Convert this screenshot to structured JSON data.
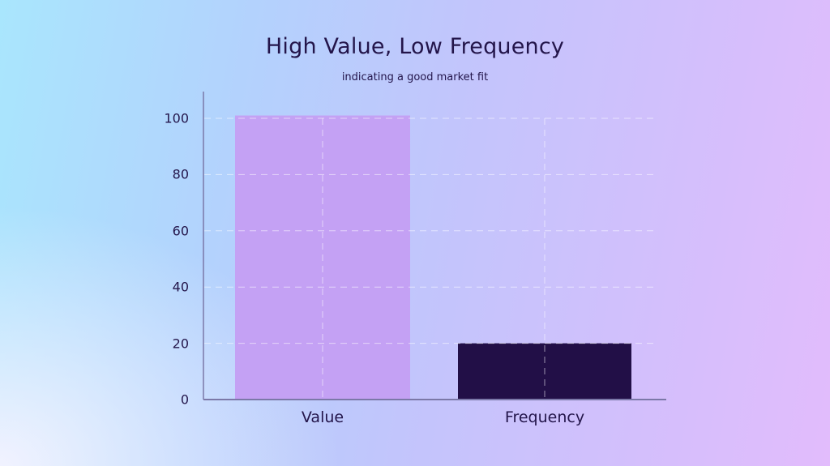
{
  "chart_data": {
    "type": "bar",
    "title": "High Value, Low Frequency",
    "subtitle": "indicating a good market fit",
    "categories": [
      "Value",
      "Frequency"
    ],
    "values": [
      101,
      20
    ],
    "xlabel": "",
    "ylabel": "",
    "ylim": [
      0,
      110
    ],
    "yticks": [
      0,
      20,
      40,
      60,
      80,
      100
    ],
    "grid": true,
    "legend": null,
    "colors": [
      "#c4a1f4",
      "#220f47"
    ]
  },
  "labels": {
    "title": "High Value, Low Frequency",
    "subtitle": "indicating a good market fit",
    "yticks": [
      "0",
      "20",
      "40",
      "60",
      "80",
      "100"
    ],
    "categories": [
      "Value",
      "Frequency"
    ]
  }
}
